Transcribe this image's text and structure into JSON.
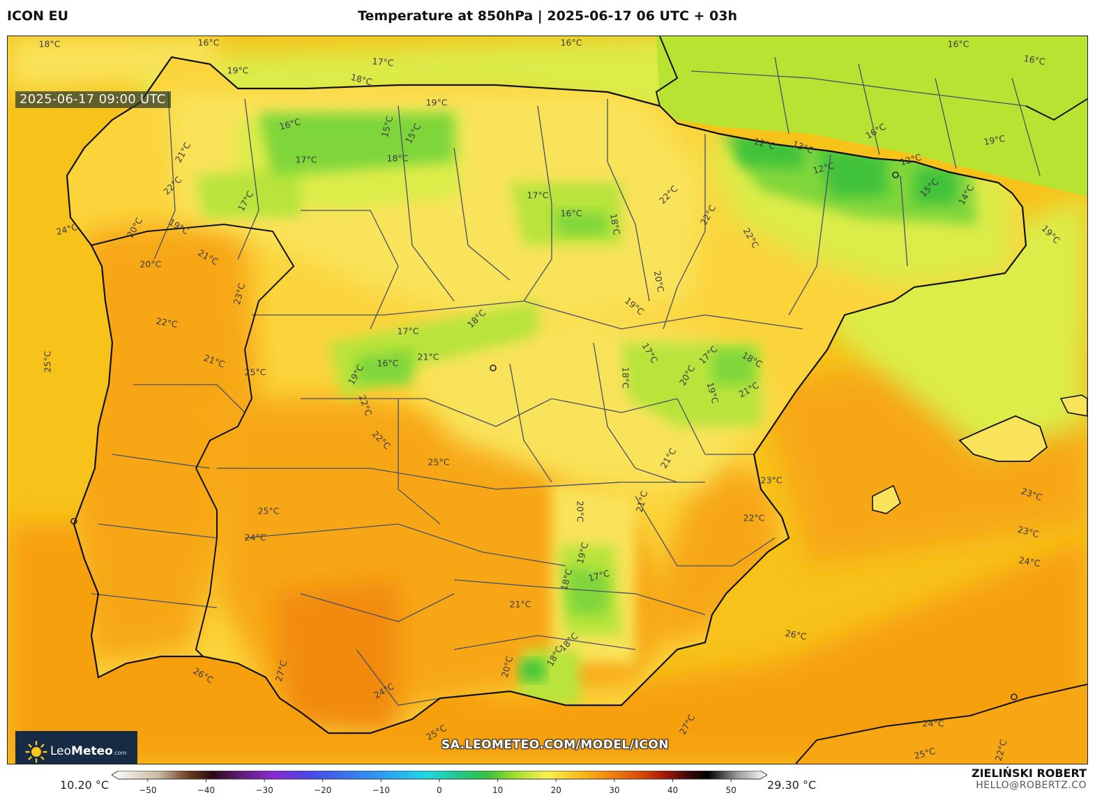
{
  "header": {
    "model": "ICON EU",
    "title": "Temperature at 850hPa | 2025-06-17 06 UTC + 03h"
  },
  "map": {
    "valid_time": "2025-06-17 09:00 UTC",
    "source_url": "SA.LEOMETEO.COM/MODEL/ICON",
    "logo": {
      "brand_light": "Leo",
      "brand_bold": "Meteo",
      "suffix": ".com"
    },
    "colors": {
      "sea_west": "#f7c21a",
      "sea_south": "#f7a00e",
      "land_base": "#fbd43c",
      "warm": "#f7a713",
      "hot": "#f28a0a",
      "mild": "#f9e35a",
      "cool": "#dcec4a",
      "cooler": "#b8e43a",
      "cold": "#7fd63a",
      "coldest": "#3fc23b",
      "france": "#b9e332",
      "border": "#111111",
      "admin_border": "#4a4e66"
    },
    "labels": [
      "16°C",
      "18°C",
      "16°C",
      "16°C",
      "16°C",
      "17°C",
      "19°C",
      "18°C",
      "19°C",
      "16°C",
      "15°C",
      "15°C",
      "17°C",
      "18°C",
      "21°C",
      "22°C",
      "17°C",
      "17°C",
      "16°C",
      "18°C",
      "12°C",
      "13°C",
      "12°C",
      "12°C",
      "15°C",
      "14°C",
      "16°C",
      "19°C",
      "22°C",
      "22°C",
      "22°C",
      "19°C",
      "24°C",
      "20°C",
      "19°C",
      "21°C",
      "20°C",
      "19°C",
      "23°C",
      "22°C",
      "21°C",
      "20°C",
      "18°C",
      "19°C",
      "17°C",
      "18°C",
      "16°C",
      "17°C",
      "21°C",
      "17°C",
      "18°C",
      "20°C",
      "19°C",
      "21°C",
      "25°C",
      "25°C",
      "23°C",
      "22°C",
      "22°C",
      "25°C",
      "21°C",
      "22°C",
      "23°C",
      "23°C",
      "25°C",
      "24°C",
      "20°C",
      "21°C",
      "24°C",
      "19°C",
      "17°C",
      "18°C",
      "21°C",
      "26°C",
      "18°C",
      "18°C",
      "20°C",
      "26°C",
      "27°C",
      "24°C",
      "25°C",
      "27°C",
      "24°C",
      "25°C",
      "22°C"
    ],
    "cities": [
      "madrid-dot",
      "lisbon-dot",
      "andorra-dot",
      "algiers-dot"
    ]
  },
  "colorbar": {
    "min_label": "10.20 °C",
    "max_label": "29.30 °C",
    "ticks": [
      "−50",
      "−40",
      "−30",
      "−20",
      "−10",
      "0",
      "10",
      "20",
      "30",
      "40",
      "50"
    ],
    "range": [
      -55,
      55
    ],
    "tick_values": [
      -50,
      -40,
      -30,
      -20,
      -10,
      0,
      10,
      20,
      30,
      40,
      50
    ],
    "stops": [
      {
        "v": -55,
        "c": "#ffffff"
      },
      {
        "v": -47,
        "c": "#c8b8a0"
      },
      {
        "v": -42,
        "c": "#6b3a22"
      },
      {
        "v": -38,
        "c": "#2a0a14"
      },
      {
        "v": -34,
        "c": "#5a1a6a"
      },
      {
        "v": -28,
        "c": "#8a2ad0"
      },
      {
        "v": -22,
        "c": "#4a46e8"
      },
      {
        "v": -15,
        "c": "#3a78f0"
      },
      {
        "v": -8,
        "c": "#2aa8f0"
      },
      {
        "v": -2,
        "c": "#20d8e0"
      },
      {
        "v": 3,
        "c": "#20c890"
      },
      {
        "v": 8,
        "c": "#38c040"
      },
      {
        "v": 13,
        "c": "#a8e030"
      },
      {
        "v": 18,
        "c": "#f8f050"
      },
      {
        "v": 24,
        "c": "#f8b818"
      },
      {
        "v": 29,
        "c": "#f08010"
      },
      {
        "v": 34,
        "c": "#d84808"
      },
      {
        "v": 38,
        "c": "#a01808"
      },
      {
        "v": 42,
        "c": "#380808"
      },
      {
        "v": 45,
        "c": "#000000"
      },
      {
        "v": 50,
        "c": "#9a9a9a"
      },
      {
        "v": 55,
        "c": "#ffffff"
      }
    ]
  },
  "footer": {
    "author": "ZIELIŃSKI ROBERT",
    "contact": "HELLO@ROBERTZ.CO"
  }
}
